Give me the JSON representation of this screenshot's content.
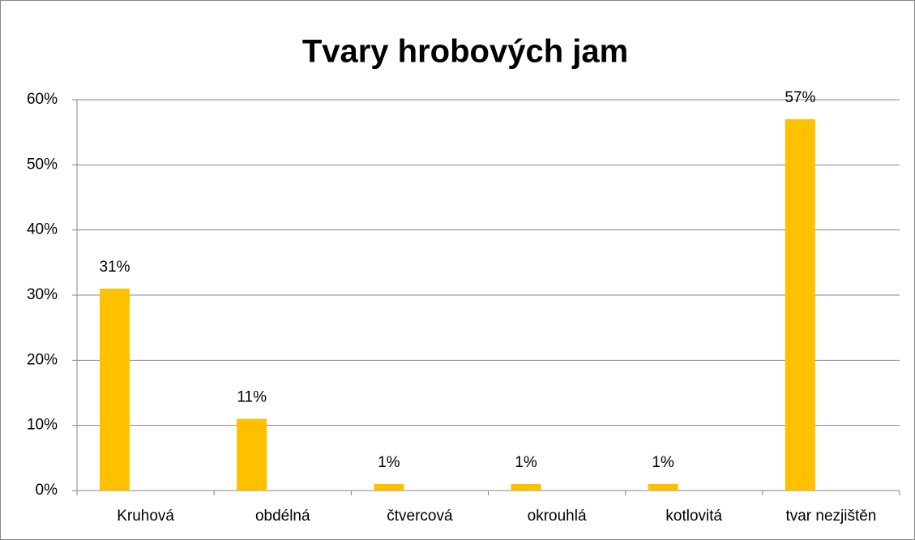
{
  "chart_data": {
    "type": "bar",
    "title": "Tvary hrobových jam",
    "categories": [
      "Kruhová",
      "obdélná",
      "čtvercová",
      "okrouhlá",
      "kotlovitá",
      "tvar nezjištěn"
    ],
    "values": [
      31,
      11,
      1,
      1,
      1,
      57
    ],
    "value_labels": [
      "31%",
      "11%",
      "1%",
      "1%",
      "1%",
      "57%"
    ],
    "color": "#ffc000",
    "ylim": [
      0,
      60
    ],
    "yticks": [
      {
        "value": 0,
        "label": "0%"
      },
      {
        "value": 10,
        "label": "10%"
      },
      {
        "value": 20,
        "label": "20%"
      },
      {
        "value": 30,
        "label": "30%"
      },
      {
        "value": 40,
        "label": "40%"
      },
      {
        "value": 50,
        "label": "50%"
      },
      {
        "value": 60,
        "label": "60%"
      }
    ],
    "grid": true
  }
}
